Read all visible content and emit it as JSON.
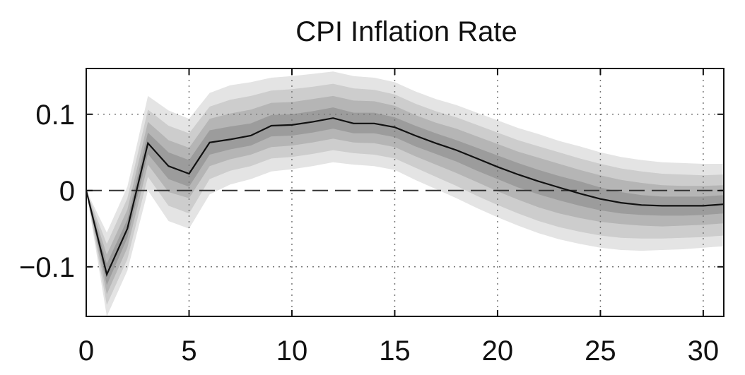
{
  "chart_data": {
    "type": "line",
    "title": "CPI Inflation Rate",
    "xlabel": "",
    "ylabel": "",
    "xlim": [
      0,
      31
    ],
    "ylim": [
      -0.165,
      0.16
    ],
    "x_ticks": [
      0,
      5,
      10,
      15,
      20,
      25,
      30
    ],
    "x_tick_labels": [
      "0",
      "5",
      "10",
      "15",
      "20",
      "25",
      "30"
    ],
    "y_ticks": [
      -0.1,
      0,
      0.1
    ],
    "y_tick_labels": [
      "−0.1",
      "0",
      "0.1"
    ],
    "grid": "dotted",
    "zero_line": "dashed",
    "x": [
      0,
      1,
      2,
      3,
      4,
      5,
      6,
      7,
      8,
      9,
      10,
      11,
      12,
      13,
      14,
      15,
      16,
      17,
      18,
      19,
      20,
      21,
      22,
      23,
      24,
      25,
      26,
      27,
      28,
      29,
      30,
      31
    ],
    "median": [
      0,
      -0.11,
      -0.05,
      0.062,
      0.032,
      0.022,
      0.063,
      0.067,
      0.072,
      0.085,
      0.086,
      0.09,
      0.095,
      0.088,
      0.088,
      0.083,
      0.072,
      0.062,
      0.053,
      0.042,
      0.031,
      0.021,
      0.012,
      0.004,
      -0.004,
      -0.011,
      -0.016,
      -0.019,
      -0.02,
      -0.02,
      -0.02,
      -0.018
    ],
    "bands": [
      {
        "lower": [
          0,
          -0.165,
          -0.105,
          0.0,
          -0.04,
          -0.05,
          -0.005,
          0.008,
          0.015,
          0.025,
          0.028,
          0.032,
          0.037,
          0.034,
          0.032,
          0.027,
          0.014,
          0.002,
          -0.01,
          -0.023,
          -0.035,
          -0.046,
          -0.056,
          -0.064,
          -0.07,
          -0.075,
          -0.078,
          -0.079,
          -0.078,
          -0.077,
          -0.075,
          -0.073
        ],
        "upper": [
          0,
          -0.055,
          0.005,
          0.124,
          0.105,
          0.094,
          0.128,
          0.138,
          0.142,
          0.148,
          0.15,
          0.153,
          0.156,
          0.15,
          0.148,
          0.142,
          0.13,
          0.12,
          0.112,
          0.102,
          0.092,
          0.082,
          0.074,
          0.065,
          0.058,
          0.05,
          0.044,
          0.04,
          0.037,
          0.036,
          0.035,
          0.035
        ]
      },
      {
        "lower": [
          0,
          -0.15,
          -0.09,
          0.018,
          -0.02,
          -0.03,
          0.015,
          0.026,
          0.032,
          0.042,
          0.044,
          0.048,
          0.053,
          0.049,
          0.047,
          0.042,
          0.03,
          0.018,
          0.006,
          -0.007,
          -0.019,
          -0.03,
          -0.04,
          -0.048,
          -0.054,
          -0.059,
          -0.062,
          -0.063,
          -0.063,
          -0.062,
          -0.061,
          -0.059
        ],
        "upper": [
          0,
          -0.07,
          -0.01,
          0.106,
          0.085,
          0.075,
          0.11,
          0.119,
          0.124,
          0.131,
          0.133,
          0.136,
          0.14,
          0.134,
          0.132,
          0.126,
          0.114,
          0.104,
          0.096,
          0.086,
          0.076,
          0.066,
          0.058,
          0.05,
          0.042,
          0.035,
          0.029,
          0.025,
          0.022,
          0.021,
          0.02,
          0.021
        ]
      },
      {
        "lower": [
          0,
          -0.136,
          -0.075,
          0.034,
          -0.002,
          -0.01,
          0.032,
          0.041,
          0.047,
          0.057,
          0.059,
          0.063,
          0.068,
          0.063,
          0.062,
          0.057,
          0.045,
          0.034,
          0.023,
          0.011,
          -0.001,
          -0.012,
          -0.022,
          -0.03,
          -0.036,
          -0.041,
          -0.044,
          -0.046,
          -0.047,
          -0.046,
          -0.045,
          -0.043
        ],
        "upper": [
          0,
          -0.084,
          -0.025,
          0.09,
          0.066,
          0.056,
          0.094,
          0.101,
          0.106,
          0.115,
          0.116,
          0.12,
          0.124,
          0.118,
          0.117,
          0.111,
          0.099,
          0.089,
          0.081,
          0.071,
          0.061,
          0.051,
          0.043,
          0.035,
          0.027,
          0.02,
          0.014,
          0.01,
          0.007,
          0.006,
          0.006,
          0.007
        ]
      },
      {
        "lower": [
          0,
          -0.124,
          -0.062,
          0.048,
          0.015,
          0.005,
          0.047,
          0.054,
          0.059,
          0.071,
          0.072,
          0.076,
          0.081,
          0.075,
          0.075,
          0.07,
          0.058,
          0.048,
          0.038,
          0.026,
          0.015,
          0.004,
          -0.005,
          -0.013,
          -0.02,
          -0.026,
          -0.03,
          -0.032,
          -0.033,
          -0.033,
          -0.032,
          -0.03
        ],
        "upper": [
          0,
          -0.096,
          -0.038,
          0.076,
          0.05,
          0.04,
          0.079,
          0.084,
          0.088,
          0.099,
          0.1,
          0.104,
          0.109,
          0.102,
          0.102,
          0.096,
          0.085,
          0.075,
          0.066,
          0.056,
          0.046,
          0.036,
          0.027,
          0.019,
          0.012,
          0.004,
          -0.002,
          -0.006,
          -0.008,
          -0.008,
          -0.008,
          -0.006
        ]
      }
    ],
    "band_colors": [
      "#e4e4e4",
      "#cdcdcd",
      "#b5b5b5",
      "#9c9c9c"
    ],
    "line_color": "#111111"
  }
}
